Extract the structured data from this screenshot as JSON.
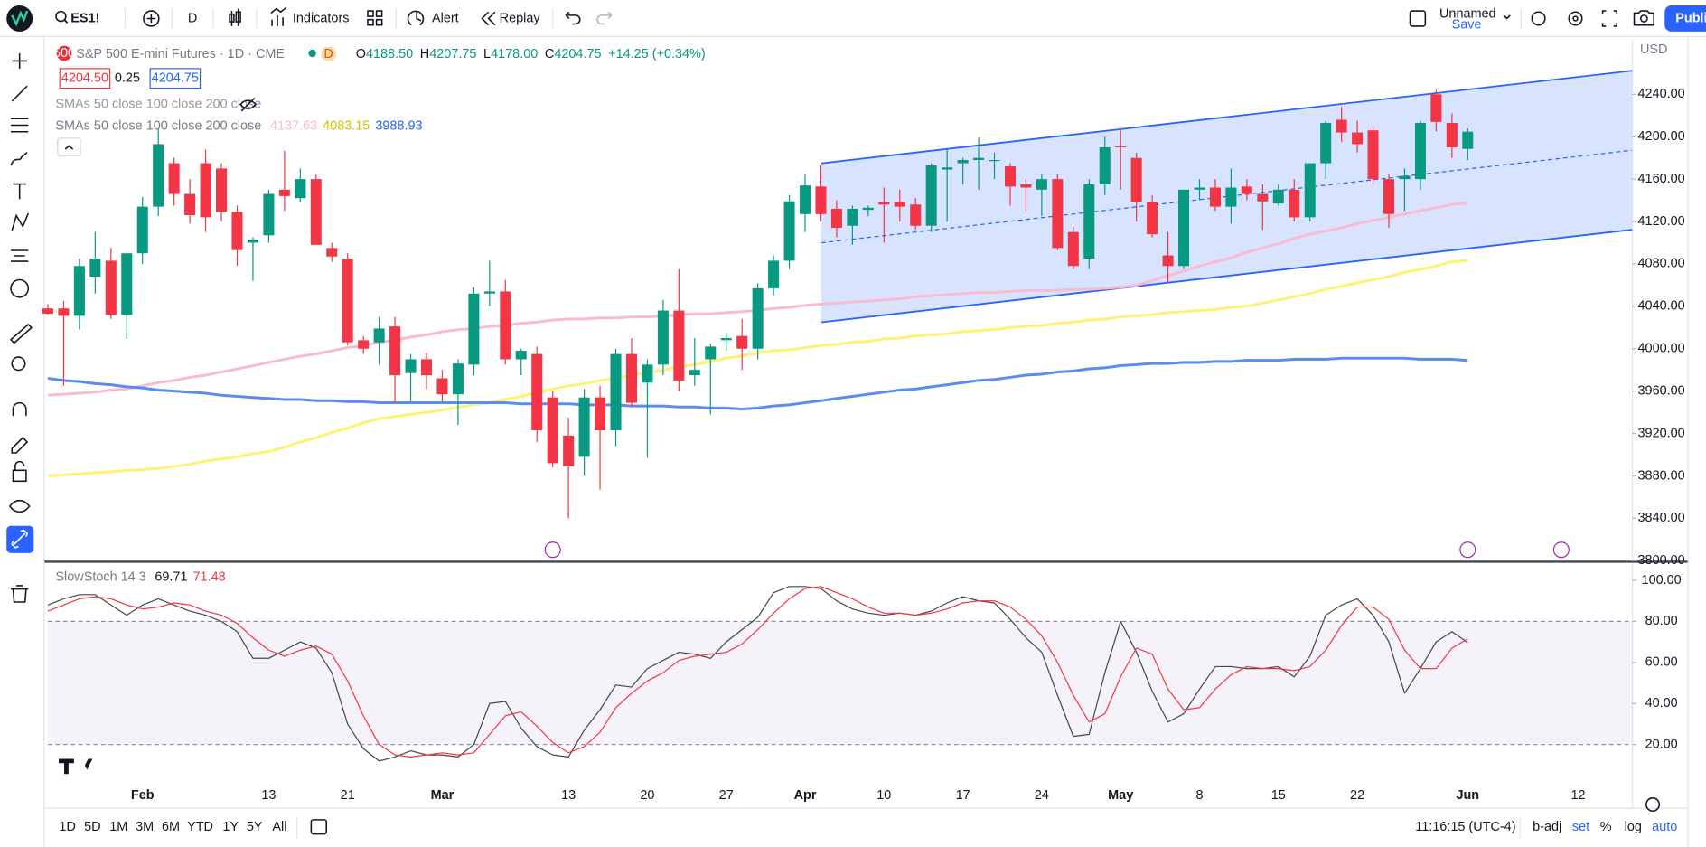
{
  "toolbar": {
    "symbol": "ES1!",
    "interval": "D",
    "indicators": "Indicators",
    "alert": "Alert",
    "replay": "Replay",
    "layout_name": "Unnamed",
    "layout_status": "Save",
    "publish": "Publi"
  },
  "legend": {
    "badge": "500",
    "title": "S&P 500 E-mini Futures · 1D · CME",
    "status_badge": "D",
    "ohlc": [
      {
        "label": "O",
        "value": "4188.50"
      },
      {
        "label": "H",
        "value": "4207.75"
      },
      {
        "label": "L",
        "value": "4178.00"
      },
      {
        "label": "C",
        "value": "4204.75"
      }
    ],
    "change": "+14.25 (+0.34%)",
    "bid": "4204.50",
    "spread": "0.25",
    "ask": "4204.75",
    "indicator_hidden": "SMAs 50 close 100 close 200 close",
    "indicator": "SMAs 50 close 100 close 200 close",
    "currency": "USD"
  },
  "bottom_bar": {
    "ranges": [
      "1D",
      "5D",
      "1M",
      "3M",
      "6M",
      "YTD",
      "1Y",
      "5Y",
      "All"
    ],
    "clock": "11:16:15 (UTC-4)",
    "options": [
      "b-adj",
      "set",
      "%",
      "log",
      "auto"
    ]
  },
  "chart_data": [
    {
      "type": "candlestick",
      "categories": [
        null,
        null,
        null,
        null,
        null,
        null,
        "Feb",
        null,
        null,
        null,
        null,
        null,
        null,
        null,
        "13",
        null,
        null,
        null,
        null,
        "21",
        null,
        null,
        null,
        null,
        null,
        "Mar",
        null,
        null,
        null,
        null,
        null,
        null,
        null,
        "13",
        null,
        null,
        null,
        null,
        "20",
        null,
        null,
        null,
        null,
        "27",
        null,
        null,
        null,
        null,
        "Apr",
        null,
        null,
        null,
        null,
        "10",
        null,
        null,
        null,
        null,
        "17",
        null,
        null,
        null,
        null,
        "24",
        null,
        null,
        null,
        null,
        "May",
        null,
        null,
        null,
        null,
        "8",
        null,
        null,
        null,
        null,
        "15",
        null,
        null,
        null,
        null,
        "22",
        null,
        null,
        null,
        null,
        null,
        null,
        "Jun",
        null,
        null,
        null,
        null,
        null,
        null,
        "12",
        null,
        null,
        null
      ],
      "open": [
        4038,
        4038,
        4031,
        4068,
        4083,
        4032,
        4090,
        4134,
        4175,
        4146,
        4175,
        4170,
        4129,
        4100,
        4107,
        4150,
        4142,
        4160,
        4095,
        4085,
        4008,
        4006,
        4021,
        3977,
        3990,
        3972,
        3957,
        3985,
        4052,
        4054,
        3990,
        3995,
        3954,
        3918,
        3898,
        3954,
        3923,
        3995,
        3968,
        3985,
        4036,
        3975,
        3990,
        4008,
        4012,
        4000,
        4057,
        4083,
        4127,
        4153,
        4132,
        4116,
        4131,
        4138,
        4138,
        4136,
        4116,
        4169,
        4175,
        4178,
        4177,
        4172,
        4155,
        4150,
        4160,
        4110,
        4085,
        4155,
        4191,
        4180,
        4138,
        4088,
        4078,
        4150,
        4152,
        4134,
        4153,
        4146,
        4137,
        4150,
        4124,
        4175,
        4216,
        4204,
        4206,
        4160,
        4160,
        4160,
        4240,
        4213,
        4188.5,
        null,
        null,
        null,
        null,
        null,
        null,
        null,
        null,
        null,
        null
      ],
      "high": [
        4042,
        4045,
        4085,
        4110,
        4095,
        4090,
        4143,
        4208,
        4180,
        4160,
        4188,
        4175,
        4135,
        4105,
        4150,
        4187,
        4170,
        4165,
        4100,
        4090,
        4012,
        4030,
        4030,
        3995,
        3996,
        3980,
        3990,
        4058,
        4083,
        4065,
        4000,
        4002,
        3960,
        3935,
        3962,
        3965,
        4000,
        4010,
        3990,
        4046,
        4075,
        4010,
        4005,
        4015,
        4028,
        4062,
        4088,
        4145,
        4165,
        4173,
        4140,
        4135,
        4135,
        4152,
        4150,
        4142,
        4175,
        4189,
        4180,
        4199,
        4185,
        4175,
        4160,
        4165,
        4165,
        4115,
        4160,
        4200,
        4206,
        4185,
        4145,
        4110,
        4150,
        4160,
        4160,
        4170,
        4160,
        4155,
        4155,
        4160,
        4175,
        4215,
        4228,
        4215,
        4210,
        4165,
        4170,
        4215,
        4244,
        4222,
        4207.75,
        null,
        null,
        null,
        null,
        null,
        null,
        null,
        null,
        null,
        null
      ],
      "low": [
        4032,
        3965,
        4018,
        4052,
        4028,
        4009,
        4080,
        4125,
        4135,
        4118,
        4110,
        4120,
        4078,
        4064,
        4100,
        4130,
        4138,
        4100,
        4082,
        4003,
        3995,
        3985,
        3949,
        3950,
        3962,
        3950,
        3928,
        3975,
        4040,
        3985,
        3975,
        3912,
        3888,
        3840,
        3880,
        3867,
        3908,
        3945,
        3897,
        3975,
        3960,
        3965,
        3938,
        3998,
        3980,
        3990,
        4050,
        4075,
        4110,
        4120,
        4105,
        4098,
        4125,
        4100,
        4120,
        4112,
        4110,
        4120,
        4155,
        4150,
        4160,
        4135,
        4130,
        4125,
        4093,
        4075,
        4075,
        4145,
        4150,
        4120,
        4105,
        4062,
        4075,
        4140,
        4130,
        4118,
        4140,
        4112,
        4135,
        4120,
        4120,
        4160,
        4195,
        4185,
        4155,
        4114,
        4130,
        4150,
        4205,
        4180,
        4178,
        null,
        null,
        null,
        null,
        null,
        null,
        null,
        null,
        null,
        null
      ],
      "close": [
        4033,
        4031,
        4078,
        4085,
        4032,
        4090,
        4134,
        4193,
        4146,
        4126,
        4124,
        4129,
        4093,
        4103,
        4146,
        4144,
        4160,
        4098,
        4087,
        4006,
        4000,
        4019,
        3975,
        3990,
        3975,
        3957,
        3986,
        4052,
        4054,
        3990,
        3998,
        3923,
        3892,
        3889,
        3954,
        3923,
        3995,
        3949,
        3985,
        4036,
        3970,
        3980,
        4002,
        4010,
        4000,
        4057,
        4083,
        4139,
        4154,
        4127,
        4114,
        4132,
        4133,
        4136,
        4134,
        4116,
        4173,
        4171,
        4178,
        4180,
        4178,
        4153,
        4152,
        4160,
        4095,
        4078,
        4155,
        4190,
        4190,
        4138,
        4108,
        4078,
        4150,
        4152,
        4134,
        4152,
        4146,
        4139,
        4150,
        4124,
        4175,
        4213,
        4204,
        4193,
        4160,
        4127,
        4163,
        4213,
        4214,
        4190,
        4204.75,
        null,
        null,
        null,
        null,
        null,
        null,
        null,
        null,
        null,
        null
      ],
      "up_color": "#089981",
      "down_color": "#f23645",
      "series": [
        {
          "color": "#f8bbd0",
          "values": [
            3956,
            3957,
            3958,
            3959,
            3961,
            3962,
            3965,
            3968,
            3970,
            3973,
            3975,
            3978,
            3981,
            3984,
            3987,
            3990,
            3993,
            3995,
            3998,
            4001,
            4003,
            4006,
            4008,
            4011,
            4013,
            4016,
            4018,
            4019,
            4021,
            4022,
            4024,
            4025,
            4027,
            4028,
            4028,
            4029,
            4029,
            4030,
            4030,
            4031,
            4032,
            4033,
            4033,
            4034,
            4035,
            4036,
            4038,
            4039,
            4041,
            4042,
            4043,
            4044,
            4045,
            4046,
            4047,
            4049,
            4050,
            4051,
            4052,
            4053,
            4053,
            4054,
            4055,
            4055,
            4055,
            4056,
            4056,
            4057,
            4058,
            4060,
            4064,
            4069,
            4073,
            4078,
            4082,
            4086,
            4091,
            4095,
            4099,
            4104,
            4108,
            4111,
            4114,
            4118,
            4121,
            4124,
            4127,
            4130,
            4133,
            4136,
            4137.63,
            null,
            null,
            null,
            null,
            null,
            null,
            null,
            null,
            null,
            null
          ]
        },
        {
          "color": "#fff176",
          "values": [
            3880,
            3881,
            3882,
            3883,
            3884,
            3885,
            3886,
            3887,
            3889,
            3891,
            3894,
            3896,
            3898,
            3901,
            3903,
            3907,
            3912,
            3916,
            3921,
            3925,
            3930,
            3934,
            3936,
            3938,
            3940,
            3942,
            3945,
            3947,
            3949,
            3952,
            3955,
            3959,
            3962,
            3965,
            3967,
            3970,
            3972,
            3975,
            3977,
            3980,
            3983,
            3985,
            3988,
            3991,
            3993,
            3996,
            3998,
            3999,
            4001,
            4003,
            4004,
            4006,
            4007,
            4009,
            4010,
            4012,
            4013,
            4014,
            4016,
            4017,
            4018,
            4020,
            4021,
            4022,
            4024,
            4025,
            4027,
            4028,
            4030,
            4031,
            4032,
            4034,
            4035,
            4036,
            4037,
            4039,
            4040,
            4043,
            4046,
            4049,
            4052,
            4056,
            4059,
            4062,
            4065,
            4068,
            4072,
            4075,
            4078,
            4082,
            4083.15,
            null,
            null,
            null,
            null,
            null,
            null,
            null,
            null,
            null,
            null
          ]
        },
        {
          "color": "#5b8def",
          "values": [
            3972,
            3970,
            3969,
            3967,
            3966,
            3964,
            3963,
            3961,
            3960,
            3959,
            3958,
            3956,
            3955,
            3954,
            3953,
            3952,
            3952,
            3951,
            3951,
            3950,
            3950,
            3949,
            3949,
            3949,
            3949,
            3949,
            3949,
            3949,
            3949,
            3949,
            3948,
            3948,
            3948,
            3948,
            3947,
            3947,
            3947,
            3946,
            3946,
            3946,
            3945,
            3945,
            3944,
            3944,
            3943,
            3944,
            3946,
            3947,
            3949,
            3951,
            3953,
            3955,
            3957,
            3959,
            3961,
            3962,
            3964,
            3966,
            3968,
            3970,
            3971,
            3973,
            3975,
            3976,
            3978,
            3979,
            3981,
            3982,
            3984,
            3985,
            3986,
            3986,
            3987,
            3987,
            3988,
            3988,
            3989,
            3989,
            3989,
            3990,
            3990,
            3990,
            3991,
            3991,
            3991,
            3991,
            3991,
            3990,
            3990,
            3990,
            3988.93,
            null,
            null,
            null,
            null,
            null,
            null,
            null,
            null,
            null,
            null
          ]
        }
      ],
      "ylim": [
        3800,
        4292
      ],
      "yticks": [
        {
          "value": 3800,
          "label": "3800.00"
        },
        {
          "value": 3840,
          "label": "3840.00"
        },
        {
          "value": 3880,
          "label": "3880.00"
        },
        {
          "value": 3920,
          "label": "3920.00"
        },
        {
          "value": 3960,
          "label": "3960.00"
        },
        {
          "value": 4000,
          "label": "4000.00"
        },
        {
          "value": 4040,
          "label": "4040.00"
        },
        {
          "value": 4080,
          "label": "4080.00"
        },
        {
          "value": 4120,
          "label": "4120.00"
        },
        {
          "value": 4160,
          "label": "4160.00"
        },
        {
          "value": 4200,
          "label": "4200.00"
        },
        {
          "value": 4240,
          "label": "4240.00"
        }
      ]
    },
    {
      "type": "line",
      "title": "SlowStoch 14 3",
      "series": [
        {
          "color": "#434651",
          "values": [
            88,
            91,
            93,
            93,
            88,
            83,
            88,
            91,
            88,
            85,
            83,
            80,
            75,
            62,
            62,
            66,
            70,
            67,
            55,
            30,
            18,
            12,
            14,
            17,
            15,
            15,
            14,
            20,
            40,
            41,
            28,
            19,
            15,
            14,
            27,
            37,
            49,
            48,
            57,
            61,
            65,
            64,
            62,
            70,
            76,
            82,
            94,
            97,
            97,
            96,
            90,
            86,
            84,
            83,
            84,
            83,
            85,
            89,
            92,
            90,
            89,
            81,
            72,
            65,
            44,
            24,
            25,
            55,
            80,
            65,
            46,
            31,
            35,
            47,
            58,
            58,
            57,
            57,
            58,
            53,
            63,
            83,
            88,
            91,
            83,
            70,
            45,
            57,
            70,
            75,
            69.71,
            null,
            null,
            null,
            null,
            null,
            null,
            null,
            null,
            null,
            null
          ]
        },
        {
          "color": "#f23645",
          "values": [
            85,
            88,
            91,
            92,
            91,
            88,
            86,
            87,
            89,
            88,
            85,
            83,
            79,
            72,
            66,
            63,
            66,
            68,
            64,
            51,
            34,
            20,
            15,
            14,
            15,
            16,
            15,
            16,
            25,
            34,
            36,
            29,
            21,
            16,
            19,
            26,
            38,
            45,
            51,
            55,
            61,
            63,
            64,
            65,
            69,
            76,
            84,
            91,
            96,
            97,
            94,
            91,
            87,
            84,
            84,
            83,
            84,
            86,
            89,
            90,
            90,
            87,
            81,
            73,
            60,
            44,
            31,
            35,
            53,
            67,
            64,
            47,
            37,
            38,
            47,
            54,
            58,
            57,
            57,
            56,
            58,
            66,
            78,
            87,
            87,
            81,
            66,
            57,
            57,
            67,
            71.48,
            null,
            null,
            null,
            null,
            null,
            null,
            null,
            null,
            null,
            null
          ]
        }
      ],
      "band": {
        "upper": 80,
        "lower": 20
      },
      "ylim": [
        3,
        108.5
      ],
      "yticks": [
        {
          "value": 20,
          "label": "20.00"
        },
        {
          "value": 40,
          "label": "40.00"
        },
        {
          "value": 60,
          "label": "60.00"
        },
        {
          "value": 80,
          "label": "80.00"
        },
        {
          "value": 100,
          "label": "100.00"
        }
      ]
    }
  ]
}
